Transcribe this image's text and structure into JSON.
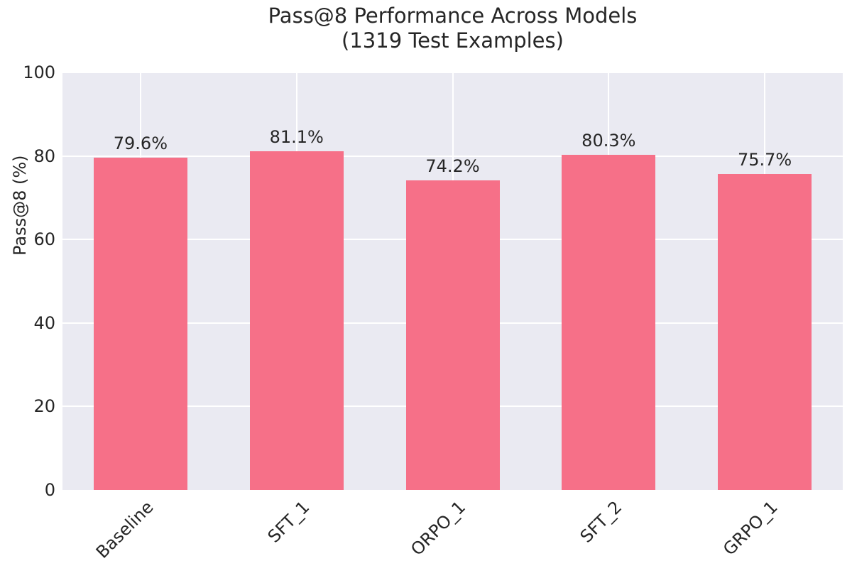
{
  "title": {
    "line1": "Pass@8 Performance Across Models",
    "line2": "(1319 Test Examples)"
  },
  "chart_data": {
    "type": "bar",
    "title": "Pass@8 Performance Across Models\n(1319 Test Examples)",
    "categories": [
      "Baseline",
      "SFT_1",
      "ORPO_1",
      "SFT_2",
      "GRPO_1"
    ],
    "values": [
      79.6,
      81.1,
      74.2,
      80.3,
      75.7
    ],
    "value_labels": [
      "79.6%",
      "81.1%",
      "74.2%",
      "80.3%",
      "75.7%"
    ],
    "xlabel": "",
    "ylabel": "Pass@8 (%)",
    "ylim": [
      0,
      100
    ],
    "yticks": [
      0,
      20,
      40,
      60,
      80,
      100
    ],
    "grid": true,
    "legend": false,
    "x_tick_rotation_deg": 45,
    "colors": {
      "bar": "#F67088",
      "plot_background": "#EAEAF2",
      "gridline": "#FFFFFF",
      "text": "#262626",
      "figure_background": "#FFFFFF"
    }
  }
}
